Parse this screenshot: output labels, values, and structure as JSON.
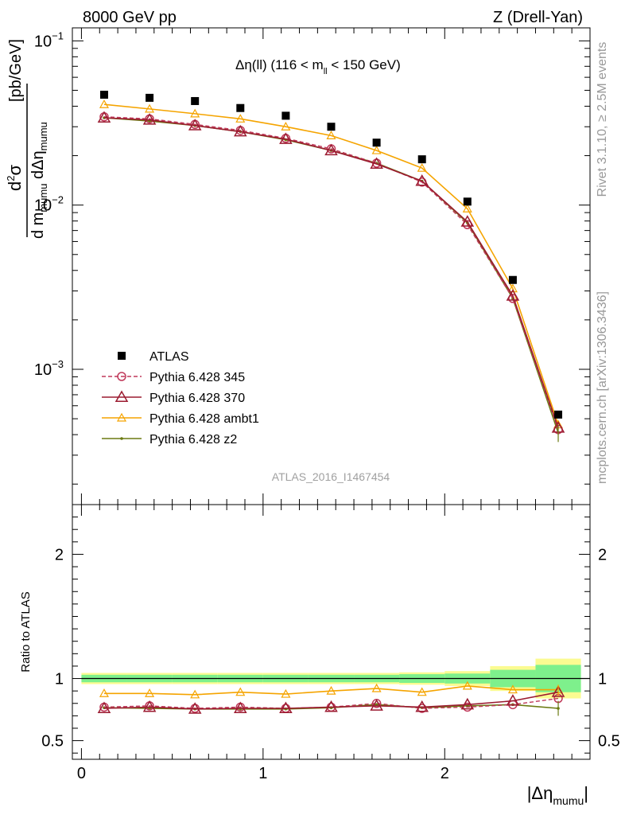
{
  "header": {
    "left": "8000 GeV pp",
    "right": "Z (Drell-Yan)"
  },
  "side_labels": {
    "rivet": "Rivet 3.1.10, ≥ 2.5M events",
    "mcplots": "mcplots.cern.ch [arXiv:1306.3436]"
  },
  "main_title": {
    "pre": "Δη(ll) (116 < m",
    "sub": "ll",
    "post": " < 150 GeV)"
  },
  "watermark": "ATLAS_2016_I1467454",
  "y_label_main": {
    "d": "d",
    "sup2": "2",
    "sigma": "σ",
    "denom_pre": "d m",
    "denom_sub": "mumu",
    "denom_mid": " dΔη",
    "denom_sub2": "mumu",
    "units": "[pb/GeV]"
  },
  "y_label_ratio": "Ratio to ATLAS",
  "x_label": {
    "pre": "|Δη",
    "sub": "mumu",
    "post": "|"
  },
  "colors": {
    "atlas": "#000000",
    "p345": "#c0395a",
    "p370": "#9b1b30",
    "ambt1": "#f5a400",
    "z2": "#6b7a12",
    "band_inner": "#7ef08c",
    "band_outer": "#fbfb91"
  },
  "chart_data": [
    {
      "type": "scatter",
      "panel": "main",
      "ylog": true,
      "xlim": [
        -0.05,
        2.8
      ],
      "ylim": [
        0.00015,
        0.12
      ],
      "y_tick_labels": [
        {
          "base": "10",
          "exp": "−1"
        },
        {
          "base": "10",
          "exp": "−2"
        },
        {
          "base": "10",
          "exp": "−3"
        }
      ],
      "x": [
        0.125,
        0.375,
        0.625,
        0.875,
        1.125,
        1.375,
        1.625,
        1.875,
        2.125,
        2.375,
        2.625
      ],
      "series": [
        {
          "name": "ATLAS",
          "key": "atlas",
          "values": [
            0.047,
            0.045,
            0.043,
            0.039,
            0.035,
            0.03,
            0.024,
            0.019,
            0.0105,
            0.0035,
            0.00053
          ]
        },
        {
          "name": "Pythia 6.428 345",
          "key": "p345",
          "values": [
            0.0345,
            0.0335,
            0.031,
            0.0285,
            0.0255,
            0.022,
            0.018,
            0.0138,
            0.0076,
            0.0027,
            0.00043
          ]
        },
        {
          "name": "Pythia 6.428 370",
          "key": "p370",
          "values": [
            0.034,
            0.033,
            0.0305,
            0.028,
            0.0252,
            0.0215,
            0.0178,
            0.014,
            0.0079,
            0.0028,
            0.00044
          ]
        },
        {
          "name": "Pythia 6.428 ambt1",
          "key": "ambt1",
          "values": [
            0.041,
            0.0385,
            0.036,
            0.0335,
            0.03,
            0.0265,
            0.0215,
            0.0168,
            0.0095,
            0.0031,
            0.00046
          ]
        },
        {
          "name": "Pythia 6.428 z2",
          "key": "z2",
          "values": [
            0.034,
            0.0325,
            0.0305,
            0.028,
            0.025,
            0.0215,
            0.018,
            0.014,
            0.0078,
            0.0027,
            0.00041
          ]
        }
      ]
    },
    {
      "type": "line",
      "panel": "ratio",
      "xlim": [
        -0.05,
        2.8
      ],
      "ylim": [
        0.35,
        2.4
      ],
      "x_ticks": [
        0,
        1,
        2
      ],
      "y_ticks": [
        0.5,
        1,
        2
      ],
      "x": [
        0.125,
        0.375,
        0.625,
        0.875,
        1.125,
        1.375,
        1.625,
        1.875,
        2.125,
        2.375,
        2.625
      ],
      "band_edges": [
        0,
        0.25,
        0.5,
        0.75,
        1.0,
        1.25,
        1.5,
        1.75,
        2.0,
        2.25,
        2.5,
        2.75
      ],
      "band_inner": [
        0.03,
        0.03,
        0.03,
        0.03,
        0.03,
        0.03,
        0.03,
        0.035,
        0.04,
        0.07,
        0.11
      ],
      "band_outer": [
        0.045,
        0.045,
        0.045,
        0.045,
        0.045,
        0.045,
        0.045,
        0.05,
        0.06,
        0.1,
        0.16
      ],
      "series": [
        {
          "name": "Pythia 6.428 345",
          "key": "p345",
          "values": [
            0.77,
            0.78,
            0.76,
            0.77,
            0.76,
            0.77,
            0.8,
            0.76,
            0.77,
            0.79,
            0.84
          ]
        },
        {
          "name": "Pythia 6.428 370",
          "key": "p370",
          "values": [
            0.76,
            0.77,
            0.755,
            0.76,
            0.76,
            0.77,
            0.78,
            0.77,
            0.79,
            0.82,
            0.89
          ]
        },
        {
          "name": "Pythia 6.428 ambt1",
          "key": "ambt1",
          "values": [
            0.88,
            0.88,
            0.87,
            0.89,
            0.875,
            0.9,
            0.92,
            0.89,
            0.94,
            0.91,
            0.91
          ]
        },
        {
          "name": "Pythia 6.428 z2",
          "key": "z2",
          "values": [
            0.765,
            0.76,
            0.755,
            0.755,
            0.755,
            0.765,
            0.79,
            0.765,
            0.78,
            0.79,
            0.76
          ]
        }
      ]
    }
  ]
}
